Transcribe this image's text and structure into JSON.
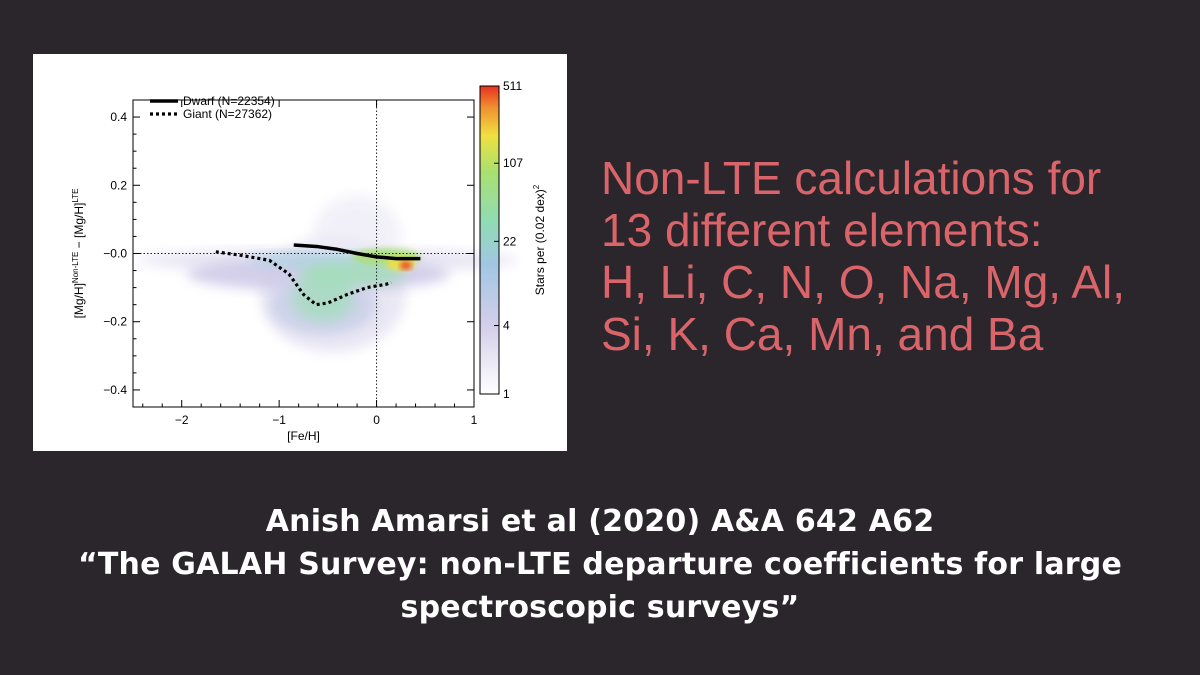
{
  "slide": {
    "background": "#2b262b",
    "headline_color": "#d9646a",
    "headline_lines": [
      "Non-LTE calculations for",
      "13 different elements:",
      "H, Li, C, N, O, Na, Mg, Al,",
      "Si, K, Ca, Mn, and Ba"
    ],
    "citation_lines": [
      "Anish Amarsi et al (2020) A&A 642 A62",
      "“The GALAH Survey: non-LTE departure coefficients for large",
      "spectroscopic surveys”"
    ]
  },
  "chart_data": {
    "type": "heatmap",
    "xlabel": "[Fe/H]",
    "ylabel_parts": [
      "[Mg/H]",
      "Non-LTE",
      " − [Mg/H]",
      "LTE"
    ],
    "xlim": [
      -2.5,
      1.0
    ],
    "ylim": [
      -0.45,
      0.45
    ],
    "xticks": [
      -2,
      -1,
      0,
      1
    ],
    "xtick_labels": [
      "−2",
      "−1",
      "0",
      "1"
    ],
    "yticks": [
      0.4,
      0.2,
      0.0,
      -0.2,
      -0.4
    ],
    "ytick_labels": [
      "0.4",
      "0.2",
      "−0.0",
      "−0.2",
      "−0.4"
    ],
    "reference_lines": {
      "x": 0,
      "y": 0
    },
    "colorbar": {
      "label_parts": [
        "Stars per (0.02 dex)",
        "2"
      ],
      "scale": "log",
      "range": [
        1,
        511
      ],
      "ticks": [
        1,
        4,
        22,
        107,
        511
      ],
      "tick_labels": [
        "1",
        "4",
        "22",
        "107",
        "511"
      ],
      "colors": [
        "#ffffff",
        "#cfc9e6",
        "#9ec9e0",
        "#8fdcb0",
        "#a8e070",
        "#f0e040",
        "#f09030",
        "#e83020"
      ]
    },
    "legend_position": "top-left",
    "series": [
      {
        "name": "Dwarf (N=22354)",
        "style": "solid",
        "x": [
          -0.85,
          -0.6,
          -0.4,
          -0.2,
          0.0,
          0.2,
          0.45
        ],
        "y": [
          0.025,
          0.02,
          0.012,
          0.0,
          -0.01,
          -0.015,
          -0.015
        ]
      },
      {
        "name": "Giant (N=27362)",
        "style": "dotted",
        "x": [
          -1.65,
          -1.4,
          -1.1,
          -0.9,
          -0.75,
          -0.62,
          -0.5,
          -0.3,
          -0.1,
          0.1,
          0.15
        ],
        "y": [
          0.005,
          -0.005,
          -0.02,
          -0.06,
          -0.12,
          -0.15,
          -0.145,
          -0.12,
          -0.1,
          -0.09,
          -0.085
        ]
      }
    ]
  }
}
